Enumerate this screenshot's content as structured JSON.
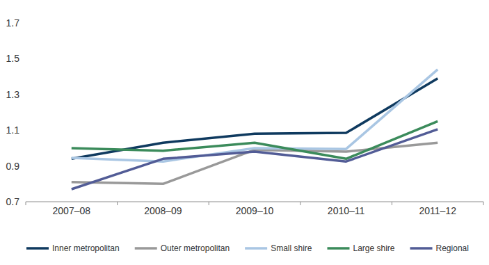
{
  "chart_data": {
    "type": "line",
    "categories": [
      "2007–08",
      "2008–09",
      "2009–10",
      "2010–11",
      "2011–12"
    ],
    "series": [
      {
        "name": "Inner metropolitan",
        "color": "#0f3a5f",
        "values": [
          0.94,
          1.03,
          1.08,
          1.085,
          1.39
        ]
      },
      {
        "name": "Outer metropolitan",
        "color": "#999999",
        "values": [
          0.81,
          0.8,
          0.99,
          0.98,
          1.03
        ]
      },
      {
        "name": "Small shire",
        "color": "#a9c6e3",
        "values": [
          0.945,
          0.925,
          1.0,
          0.995,
          1.44
        ]
      },
      {
        "name": "Large shire",
        "color": "#3b8b5b",
        "values": [
          1.0,
          0.985,
          1.03,
          0.94,
          1.15
        ]
      },
      {
        "name": "Regional",
        "color": "#525c96",
        "values": [
          0.77,
          0.94,
          0.98,
          0.925,
          1.105
        ]
      }
    ],
    "ylim": [
      0.7,
      1.7
    ],
    "yticks": [
      0.7,
      0.9,
      1.1,
      1.3,
      1.5,
      1.7
    ],
    "grid": false,
    "legend": "bottom"
  }
}
